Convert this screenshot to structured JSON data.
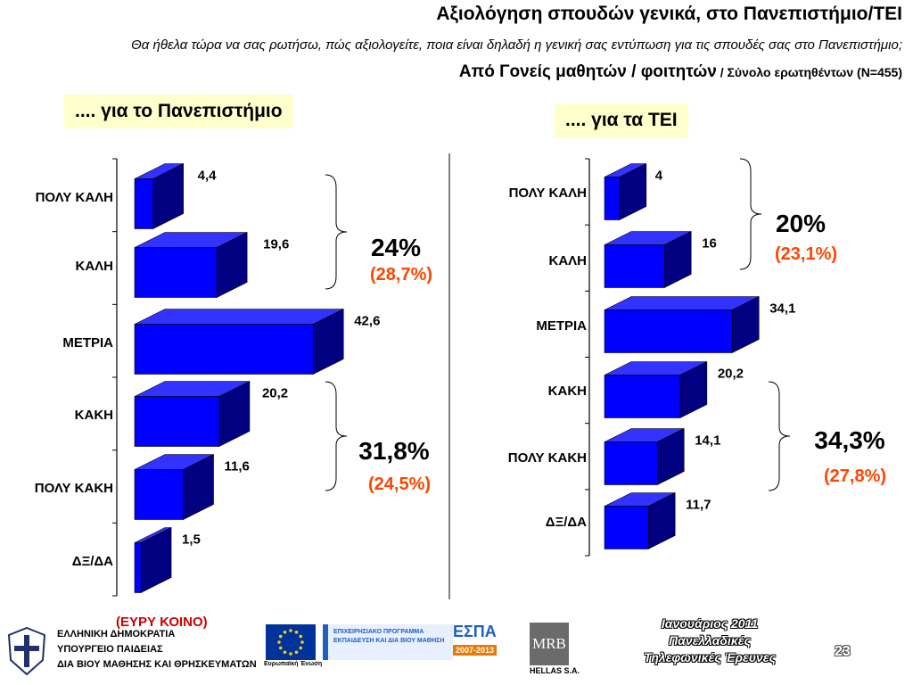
{
  "header": {
    "title": "Αξιολόγηση σπουδών γενικά, στο Πανεπιστήμιο/ΤΕΙ",
    "question": "Θα ήθελα τώρα να σας ρωτήσω, πώς αξιολογείτε, ποια είναι δηλαδή η γενική σας εντύπωση για τις σπουδές σας στο Πανεπιστήμιο;",
    "subtitle_main": "Από Γονείς μαθητών / φοιτητών",
    "subtitle_small": " / Σύνολο ερωτηθέντων (Ν=455)"
  },
  "colors": {
    "bar_front": "#0000ff",
    "bar_top": "#3333ff",
    "bar_side": "#000080",
    "secondary_text": "#ff4500",
    "label_bg": "#ffffcc"
  },
  "chart_data": [
    {
      "type": "bar",
      "title": ".... για το Πανεπιστήμιο",
      "categories": [
        "ΠΟΛΥ ΚΑΛΗ",
        "ΚΑΛΗ",
        "ΜΕΤΡΙΑ",
        "ΚΑΚΗ",
        "ΠΟΛΥ ΚΑΚΗ",
        "ΔΞ/ΔΑ"
      ],
      "values": [
        4.4,
        19.6,
        42.6,
        20.2,
        11.6,
        1.5
      ],
      "value_labels": [
        "4,4",
        "19,6",
        "42,6",
        "20,2",
        "11,6",
        "1,5"
      ],
      "groups": [
        {
          "main": "24%",
          "secondary": "(28,7%)"
        },
        {
          "main": "31,8%",
          "secondary": "(24,5%)"
        }
      ]
    },
    {
      "type": "bar",
      "title": ".... για τα ΤΕΙ",
      "categories": [
        "ΠΟΛΥ ΚΑΛΗ",
        "ΚΑΛΗ",
        "ΜΕΤΡΙΑ",
        "ΚΑΚΗ",
        "ΠΟΛΥ ΚΑΚΗ",
        "ΔΞ/ΔΑ"
      ],
      "values": [
        4,
        16,
        34.1,
        20.2,
        14.1,
        11.7
      ],
      "value_labels": [
        "4",
        "16",
        "34,1",
        "20,2",
        "14,1",
        "11,7"
      ],
      "groups": [
        {
          "main": "20%",
          "secondary": "(23,1%)"
        },
        {
          "main": "34,3%",
          "secondary": "(27,8%)"
        }
      ]
    }
  ],
  "footer": {
    "ministry": [
      "ΕΛΛΗΝΙΚΗ ΔΗΜΟΚΡΑΤΙΑ",
      "ΥΠΟΥΡΓΕΙΟ ΠΑΙΔΕΙΑΣ",
      "ΔΙΑ ΒΙΟΥ ΜΑΘΗΣΗΣ ΚΑΙ ΘΡΗΣΚΕΥΜΑΤΩΝ"
    ],
    "sample_note": "(ΕΥΡΥ ΚΟΙΝΟ)",
    "eu_caption": "Ευρωπαϊκή Ένωση",
    "programme_caption": "ΕΠΙΧΕΙΡΗΣΙΑΚΟ ΠΡΟΓΡΑΜΜΑ ΕΚΠΑΙΔΕΥΣΗ ΚΑΙ ΔΙΑ ΒΙΟΥ ΜΑΘΗΣΗ",
    "espa_label": "ΕΣΠΑ",
    "espa_years": "2007-2013",
    "mrb_logo": "MRB",
    "mrb_caption": "HELLAS S.A.",
    "date_lines": [
      "Ιανουάριος 2011",
      "Πανελλαδικές",
      "Τηλεφωνικές Έρευνες"
    ],
    "page_number": "23"
  }
}
